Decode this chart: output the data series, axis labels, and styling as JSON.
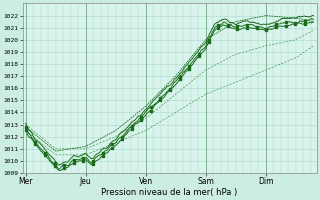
{
  "background_color": "#cceee0",
  "plot_bg_color": "#d8f4ec",
  "grid_color": "#a8d8c8",
  "line_color_solid": "#1a6b1a",
  "line_color_dotted": "#4a9a4a",
  "ylim": [
    1009,
    1023
  ],
  "yticks": [
    1009,
    1010,
    1011,
    1012,
    1013,
    1014,
    1015,
    1016,
    1017,
    1018,
    1019,
    1020,
    1021,
    1022
  ],
  "xlabel": "Pression niveau de la mer( hPa )",
  "xtick_labels": [
    "Mer",
    "Jeu",
    "Ven",
    "Sam",
    "Dim"
  ],
  "xtick_positions": [
    0.0,
    1.0,
    2.0,
    3.0,
    4.0
  ],
  "day_lines": [
    0.0,
    1.0,
    2.0,
    3.0,
    4.0
  ],
  "xlim": [
    -0.05,
    4.85
  ]
}
